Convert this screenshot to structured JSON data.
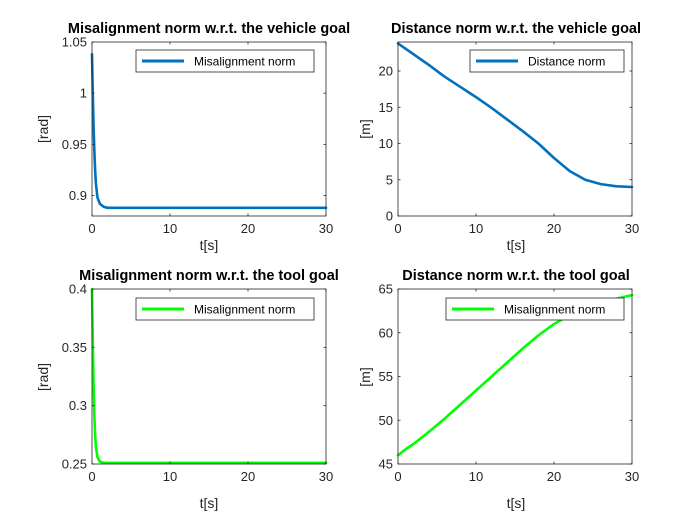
{
  "chart_data": [
    {
      "type": "line",
      "title": "Misalignment norm w.r.t. the vehicle goal",
      "xlabel": "t[s]",
      "ylabel": "[rad]",
      "xlim": [
        0,
        30
      ],
      "ylim": [
        0.88,
        1.05
      ],
      "xticks": [
        0,
        10,
        20,
        30
      ],
      "yticks": [
        0.9,
        0.95,
        1,
        1.05
      ],
      "ytick_labels": [
        "0.9",
        "0.95",
        "1",
        "1.05"
      ],
      "grid": false,
      "legend_position": "top-right",
      "series": [
        {
          "name": "Misalignment norm",
          "color": "#0072BD",
          "x": [
            0,
            0.1,
            0.2,
            0.3,
            0.4,
            0.5,
            0.7,
            1,
            1.5,
            2,
            3,
            5,
            10,
            15,
            20,
            25,
            30
          ],
          "y": [
            1.038,
            1.0,
            0.968,
            0.944,
            0.925,
            0.912,
            0.898,
            0.892,
            0.889,
            0.888,
            0.888,
            0.888,
            0.888,
            0.888,
            0.888,
            0.888,
            0.888
          ]
        }
      ]
    },
    {
      "type": "line",
      "title": "Distance norm w.r.t. the vehicle goal",
      "xlabel": "t[s]",
      "ylabel": "[m]",
      "xlim": [
        0,
        30
      ],
      "ylim": [
        0,
        24
      ],
      "xticks": [
        0,
        10,
        20,
        30
      ],
      "yticks": [
        0,
        5,
        10,
        15,
        20
      ],
      "ytick_labels": [
        "0",
        "5",
        "10",
        "15",
        "20"
      ],
      "grid": false,
      "legend_position": "top-right",
      "series": [
        {
          "name": "Distance norm",
          "color": "#0072BD",
          "x": [
            0,
            2,
            4,
            6,
            8,
            10,
            12,
            14,
            16,
            18,
            20,
            22,
            24,
            26,
            28,
            30
          ],
          "y": [
            23.8,
            22.3,
            20.8,
            19.2,
            17.8,
            16.4,
            14.9,
            13.3,
            11.7,
            10.0,
            8.0,
            6.2,
            5.0,
            4.4,
            4.1,
            4.0
          ]
        }
      ]
    },
    {
      "type": "line",
      "title": "Misalignment norm w.r.t. the tool goal",
      "xlabel": "t[s]",
      "ylabel": "[rad]",
      "xlim": [
        0,
        30
      ],
      "ylim": [
        0.25,
        0.4
      ],
      "xticks": [
        0,
        10,
        20,
        30
      ],
      "yticks": [
        0.25,
        0.3,
        0.35,
        0.4
      ],
      "ytick_labels": [
        "0.25",
        "0.3",
        "0.35",
        "0.4"
      ],
      "grid": false,
      "legend_position": "top-right",
      "series": [
        {
          "name": "Misalignment norm",
          "color": "#00FF00",
          "x": [
            0,
            0.1,
            0.2,
            0.3,
            0.4,
            0.5,
            0.7,
            1,
            1.5,
            2,
            3,
            5,
            10,
            15,
            20,
            25,
            30
          ],
          "y": [
            0.4,
            0.355,
            0.318,
            0.292,
            0.275,
            0.265,
            0.256,
            0.252,
            0.251,
            0.251,
            0.251,
            0.251,
            0.251,
            0.251,
            0.251,
            0.251,
            0.251
          ]
        }
      ]
    },
    {
      "type": "line",
      "title": "Distance norm w.r.t. the tool goal",
      "xlabel": "t[s]",
      "ylabel": "[m]",
      "xlim": [
        0,
        30
      ],
      "ylim": [
        45,
        65
      ],
      "xticks": [
        0,
        10,
        20,
        30
      ],
      "yticks": [
        45,
        50,
        55,
        60,
        65
      ],
      "ytick_labels": [
        "45",
        "50",
        "55",
        "60",
        "65"
      ],
      "grid": false,
      "legend_position": "top-right",
      "series": [
        {
          "name": "Misalignment norm",
          "color": "#00FF00",
          "x": [
            0,
            1,
            2,
            4,
            6,
            8,
            10,
            12,
            14,
            16,
            18,
            20,
            22,
            24,
            26,
            28,
            30
          ],
          "y": [
            46.0,
            46.7,
            47.3,
            48.7,
            50.2,
            51.8,
            53.4,
            55.0,
            56.6,
            58.2,
            59.7,
            61.0,
            62.0,
            62.8,
            63.4,
            63.9,
            64.3
          ]
        }
      ]
    }
  ]
}
